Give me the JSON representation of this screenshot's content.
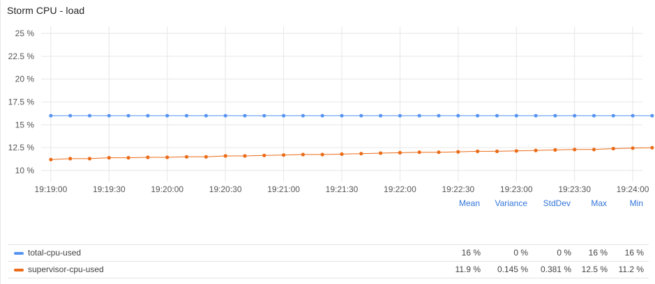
{
  "panel": {
    "title": "Storm CPU - load"
  },
  "colors": {
    "total": "#5794f2",
    "supervisor": "#eb6b16",
    "grid": "#e6e6e6",
    "header": "#3274d9"
  },
  "chart_data": {
    "type": "line",
    "title": "Storm CPU - load",
    "xlabel": "",
    "ylabel": "",
    "y_ticks": [
      "25 %",
      "22.5 %",
      "20 %",
      "17.5 %",
      "15 %",
      "12.5 %",
      "10 %"
    ],
    "ylim": [
      9.5,
      25
    ],
    "x_ticks": [
      "19:19:00",
      "19:19:30",
      "19:20:00",
      "19:20:30",
      "19:21:00",
      "19:21:30",
      "19:22:00",
      "19:22:30",
      "19:23:00",
      "19:23:30",
      "19:24:00"
    ],
    "x_start": "19:18:55",
    "x_end": "19:24:05",
    "x_step_seconds": 10,
    "grid": true,
    "legend_placement": "bottom",
    "series": [
      {
        "name": "total-cpu-used",
        "values": [
          16,
          16,
          16,
          16,
          16,
          16,
          16,
          16,
          16,
          16,
          16,
          16,
          16,
          16,
          16,
          16,
          16,
          16,
          16,
          16,
          16,
          16,
          16,
          16,
          16,
          16,
          16,
          16,
          16,
          16,
          16,
          16
        ]
      },
      {
        "name": "supervisor-cpu-used",
        "values": [
          11.2,
          11.3,
          11.3,
          11.4,
          11.4,
          11.45,
          11.45,
          11.5,
          11.5,
          11.6,
          11.6,
          11.65,
          11.7,
          11.75,
          11.75,
          11.8,
          11.85,
          11.9,
          11.95,
          12.0,
          12.0,
          12.05,
          12.1,
          12.1,
          12.15,
          12.2,
          12.25,
          12.3,
          12.3,
          12.4,
          12.45,
          12.5
        ]
      }
    ]
  },
  "legend": {
    "headers": [
      "Mean",
      "Variance",
      "StdDev",
      "Max",
      "Min"
    ],
    "rows": [
      {
        "name": "total-cpu-used",
        "color": "#5794f2",
        "mean": "16 %",
        "variance": "0 %",
        "stddev": "0 %",
        "max": "16 %",
        "min": "16 %"
      },
      {
        "name": "supervisor-cpu-used",
        "color": "#eb6b16",
        "mean": "11.9 %",
        "variance": "0.145 %",
        "stddev": "0.381 %",
        "max": "12.5 %",
        "min": "11.2 %"
      }
    ]
  }
}
